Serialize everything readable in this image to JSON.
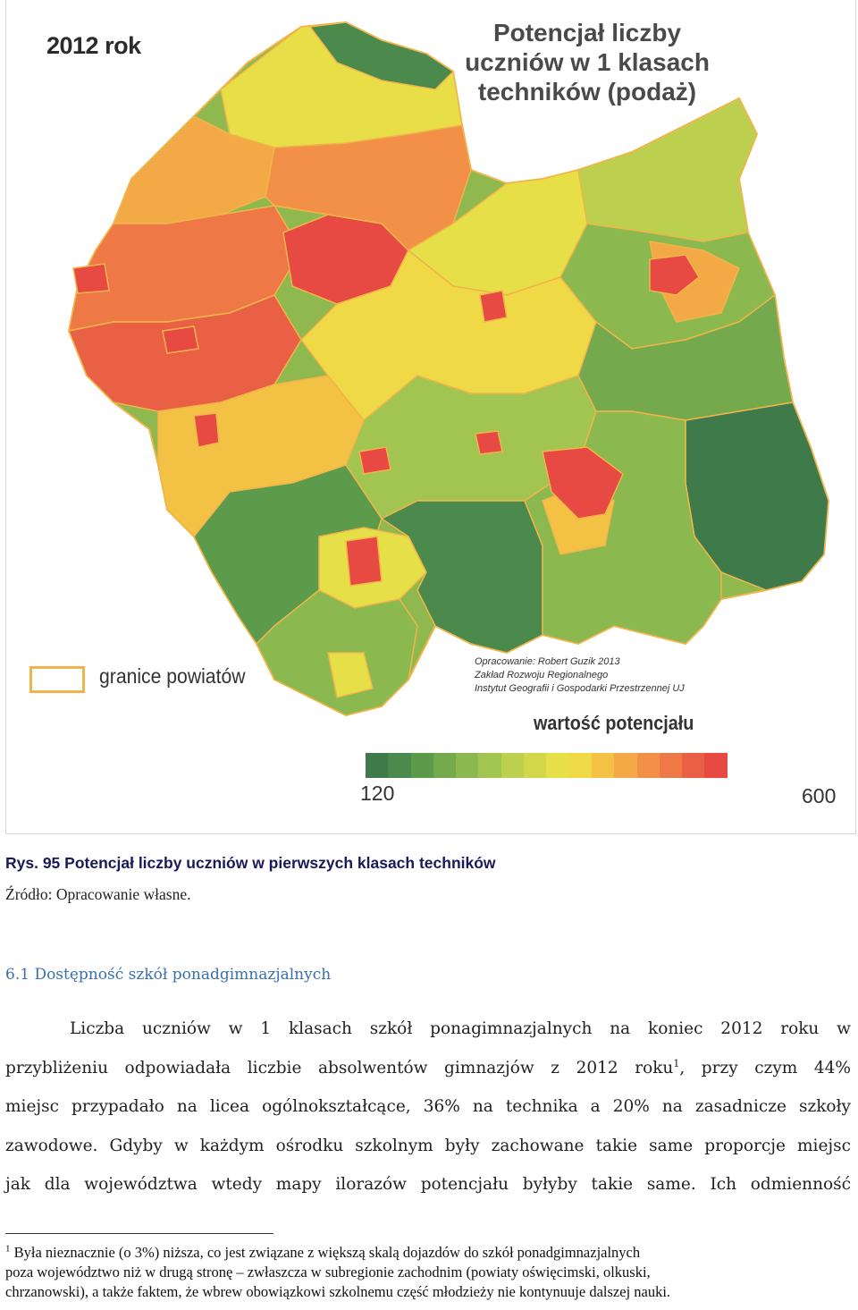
{
  "map": {
    "year": "2012 rok",
    "title_lines": [
      "Potencjał liczby",
      "uczniów w 1 klasach",
      "techników (podaż)"
    ],
    "legend_border_label": "granice powiatów",
    "credits": [
      "Opracowanie: Robert Guzik 2013",
      "Zakład Rozwoju Regionalnego",
      "Instytut Geografii i Gospodarki Przestrzennej UJ"
    ],
    "scale_title": "wartość potencjału",
    "scale_min": "120",
    "scale_max": "600",
    "scale_colors": [
      "#3f7a4a",
      "#4b8a4c",
      "#5c9a4c",
      "#74a94e",
      "#8bb84f",
      "#a2c450",
      "#bccf4e",
      "#d3d84b",
      "#e6df48",
      "#f0d946",
      "#f3c144",
      "#f3a946",
      "#f19046",
      "#ee7846",
      "#ea6044",
      "#e64a42"
    ],
    "border_color": "#f0b54a"
  },
  "caption": "Rys. 95 Potencjał liczby uczniów w pierwszych klasach techników",
  "source": "Źródło: Opracowanie własne.",
  "section_title": "6.1 Dostępność szkół ponadgimnazjalnych",
  "paragraph_lines": [
    "Liczba uczniów w 1 klasach szkół ponagimnazjalnych na koniec 2012 roku w",
    "przybliżeniu odpowiadała liczbie absolwentów gimnazjów z 2012 roku",
    ", przy czym 44%",
    "miejsc przypadało na licea ogólnokształcące, 36% na technika a 20% na zasadnicze szkoły",
    "zawodowe. Gdyby w każdym ośrodku szkolnym były zachowane takie same proporcje miejsc",
    "jak dla województwa wtedy mapy ilorazów potencjału byłyby takie same. Ich odmienność"
  ],
  "footnote_ref": "1",
  "footnote_lines": [
    "Była nieznacznie (o 3%) niższa, co jest związane z większą skalą dojazdów do szkół ponadgimnazjalnych",
    "poza województwo niż w drugą stronę – zwłaszcza w subregionie zachodnim (powiaty oświęcimski, olkuski,",
    "chrzanowski), a także faktem, że wbrew obowiązkowi szkolnemu część młodzieży nie kontynuuje dalszej nauki."
  ]
}
